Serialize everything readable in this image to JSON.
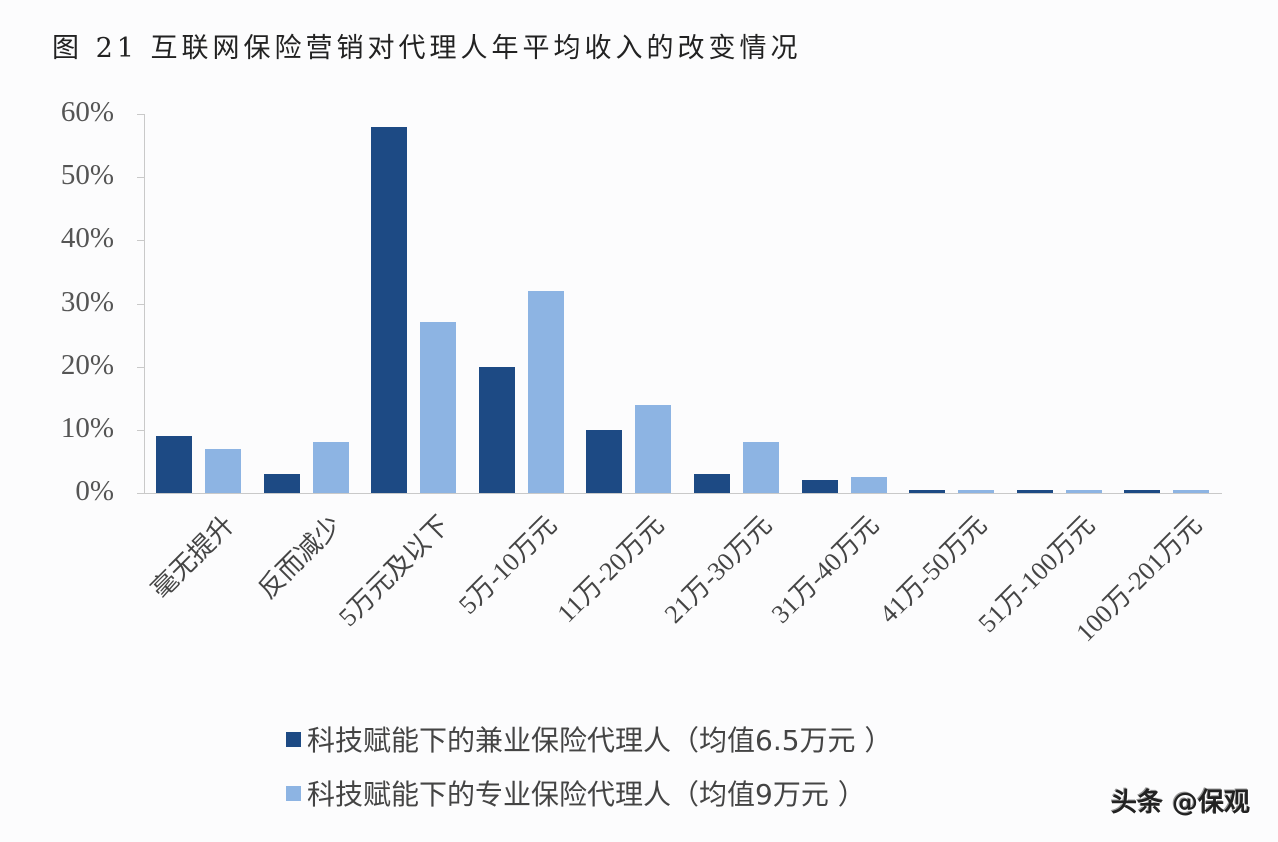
{
  "header": {
    "title": "图 21  互联网保险营销对代理人年平均收入的改变情况"
  },
  "colors": {
    "series_dark": "#1d4a84",
    "series_light": "#8db4e3",
    "axis": "#c9c9c9"
  },
  "legend": {
    "items": [
      {
        "label": "科技赋能下的兼业保险代理人（均值6.5万元 ）",
        "color": "#1d4a84"
      },
      {
        "label": "科技赋能下的专业保险代理人（均值9万元 ）",
        "color": "#8db4e3"
      }
    ]
  },
  "watermark": "头条 @保观",
  "chart_data": {
    "type": "bar",
    "title": "图 21 互联网保险营销对代理人年平均收入的改变情况",
    "xlabel": "",
    "ylabel": "",
    "ylim": [
      0,
      60
    ],
    "yticks": [
      "0%",
      "10%",
      "20%",
      "30%",
      "40%",
      "50%",
      "60%"
    ],
    "grid": false,
    "legend_position": "bottom",
    "categories": [
      "毫无提升",
      "反而减少",
      "5万元及以下",
      "5万-10万元",
      "11万-20万元",
      "21万-30万元",
      "31万-40万元",
      "41万-50万元",
      "51万-100万元",
      "100万-201万元"
    ],
    "series": [
      {
        "name": "科技赋能下的兼业保险代理人（均值6.5万元 ）",
        "values": [
          9,
          3,
          58,
          20,
          10,
          3,
          2,
          0.5,
          0.5,
          0.5
        ]
      },
      {
        "name": "科技赋能下的专业保险代理人（均值9万元 ）",
        "values": [
          7,
          8,
          27,
          32,
          14,
          8,
          2.5,
          0.5,
          0.5,
          0.5
        ]
      }
    ]
  }
}
